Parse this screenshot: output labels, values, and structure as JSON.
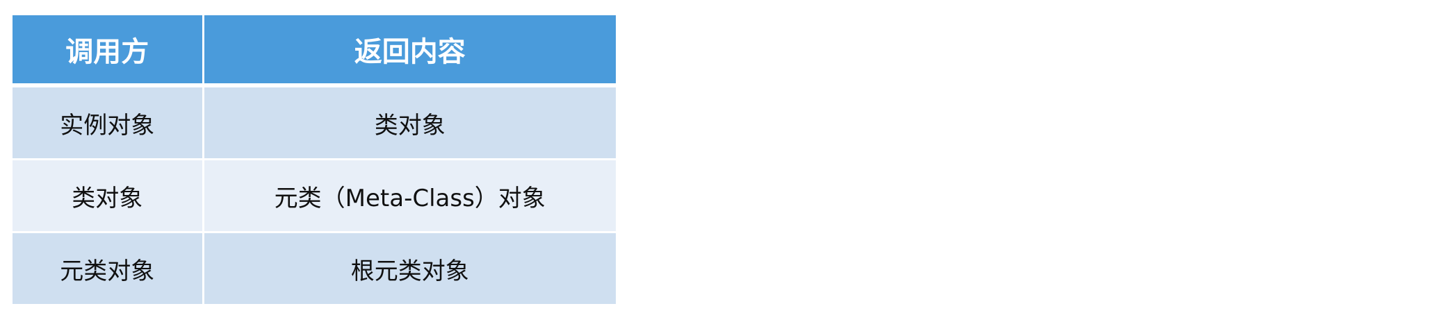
{
  "table": {
    "headers": [
      "调用方",
      "返回内容"
    ],
    "rows": [
      [
        "实例对象",
        "类对象"
      ],
      [
        "类对象",
        "元类（Meta-Class）对象"
      ],
      [
        "元类对象",
        "根元类对象"
      ]
    ],
    "colors": {
      "header_bg": "#4a9bdb",
      "row_dark_bg": "#cfdff0",
      "row_light_bg": "#e8eff8"
    }
  }
}
